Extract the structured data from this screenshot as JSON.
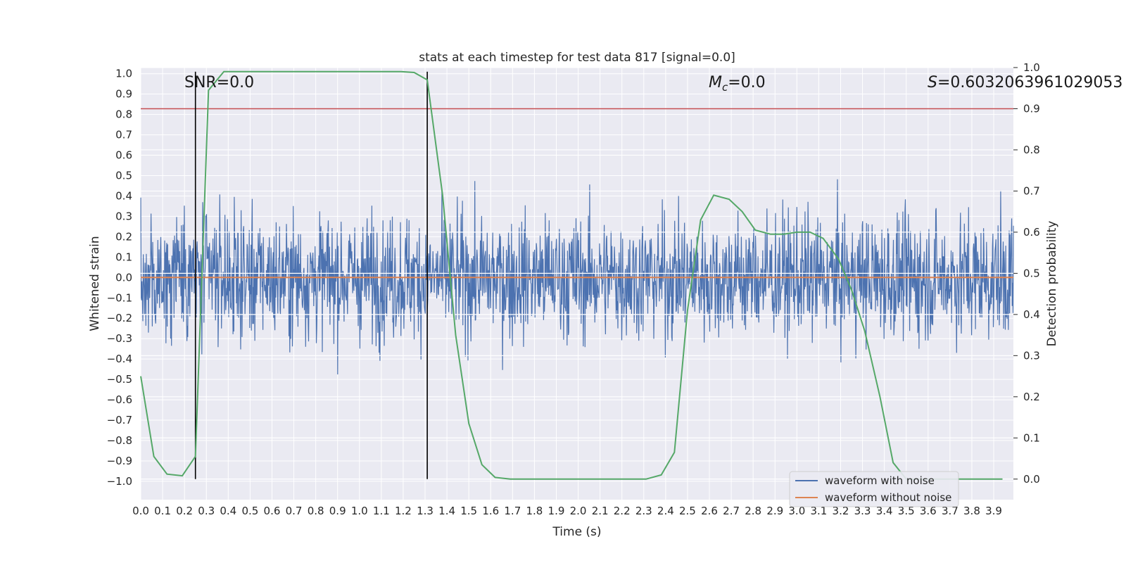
{
  "chart_data": {
    "type": "line",
    "title": "stats at each timestep for test data 817 [signal=0.0]",
    "xlabel": "Time (s)",
    "ylabel": "Whitened strain",
    "y2label": "Detection probability",
    "xlim": [
      0.0,
      3.99
    ],
    "ylim": [
      -1.09,
      1.03
    ],
    "y2lim": [
      -0.05,
      1.0
    ],
    "x_ticks": [
      "0.0",
      "0.1",
      "0.2",
      "0.3",
      "0.4",
      "0.5",
      "0.6",
      "0.7",
      "0.8",
      "0.9",
      "1.0",
      "1.1",
      "1.2",
      "1.3",
      "1.4",
      "1.5",
      "1.6",
      "1.7",
      "1.8",
      "1.9",
      "2.0",
      "2.1",
      "2.2",
      "2.3",
      "2.4",
      "2.5",
      "2.6",
      "2.7",
      "2.8",
      "2.9",
      "3.0",
      "3.1",
      "3.2",
      "3.3",
      "3.4",
      "3.5",
      "3.6",
      "3.7",
      "3.8",
      "3.9"
    ],
    "y_ticks": [
      "1.0",
      "0.9",
      "0.8",
      "0.7",
      "0.6",
      "0.5",
      "0.4",
      "0.3",
      "0.2",
      "0.1",
      "0.0",
      "−0.1",
      "−0.2",
      "−0.3",
      "−0.4",
      "−0.5",
      "−0.6",
      "−0.7",
      "−0.8",
      "−0.9",
      "−1.0"
    ],
    "y2_ticks": [
      "1.0",
      "0.9",
      "0.8",
      "0.7",
      "0.6",
      "0.5",
      "0.4",
      "0.3",
      "0.2",
      "0.1",
      "0.0"
    ],
    "annotations": {
      "snr": "SNR=0.0",
      "mc_symbol": "M",
      "mc_sub": "c",
      "mc_value": "=0.0",
      "s_symbol": "S",
      "s_value": "=0.6032063961029053"
    },
    "threshold": {
      "value": 0.9,
      "axis": "y2",
      "color": "#c44e52"
    },
    "vlines": [
      0.25,
      1.31
    ],
    "noise_series": {
      "name": "waveform with noise",
      "color": "#4c72b0",
      "sample_rate_per_s": 512,
      "amplitude_std": 0.3,
      "range": [
        -1.0,
        1.0
      ]
    },
    "clean_series": {
      "name": "waveform without noise",
      "color": "#dd8452",
      "value": 0.0
    },
    "probability_series": {
      "name": "detection probability",
      "color": "#55a868",
      "x": [
        0.0,
        0.06,
        0.12,
        0.19,
        0.25,
        0.31,
        0.38,
        0.44,
        0.5,
        0.56,
        0.62,
        0.69,
        0.75,
        0.81,
        0.88,
        0.94,
        1.0,
        1.06,
        1.12,
        1.19,
        1.25,
        1.31,
        1.38,
        1.44,
        1.5,
        1.56,
        1.62,
        1.69,
        1.75,
        1.81,
        1.88,
        1.94,
        2.0,
        2.06,
        2.12,
        2.19,
        2.25,
        2.31,
        2.38,
        2.44,
        2.5,
        2.56,
        2.62,
        2.69,
        2.75,
        2.81,
        2.88,
        2.94,
        3.0,
        3.06,
        3.12,
        3.19,
        3.25,
        3.31,
        3.38,
        3.44,
        3.5,
        3.56,
        3.62,
        3.69,
        3.75,
        3.81,
        3.88,
        3.94
      ],
      "values": [
        0.25,
        0.055,
        0.012,
        0.008,
        0.055,
        0.945,
        0.99,
        0.99,
        0.99,
        0.99,
        0.99,
        0.99,
        0.99,
        0.99,
        0.99,
        0.99,
        0.99,
        0.99,
        0.99,
        0.99,
        0.988,
        0.97,
        0.69,
        0.35,
        0.135,
        0.035,
        0.004,
        0.0,
        0.0,
        0.0,
        0.0,
        0.0,
        0.0,
        0.0,
        0.0,
        0.0,
        0.0,
        0.0,
        0.01,
        0.065,
        0.41,
        0.63,
        0.69,
        0.68,
        0.65,
        0.605,
        0.595,
        0.595,
        0.6,
        0.6,
        0.585,
        0.535,
        0.46,
        0.36,
        0.2,
        0.04,
        0.0,
        0.0,
        0.0,
        0.0,
        0.0,
        0.0,
        0.0,
        0.0
      ]
    },
    "legend": {
      "position": "lower-right",
      "entries": [
        {
          "label": "waveform with noise",
          "color": "#4c72b0"
        },
        {
          "label": "waveform without noise",
          "color": "#dd8452"
        }
      ]
    },
    "grid": true
  }
}
